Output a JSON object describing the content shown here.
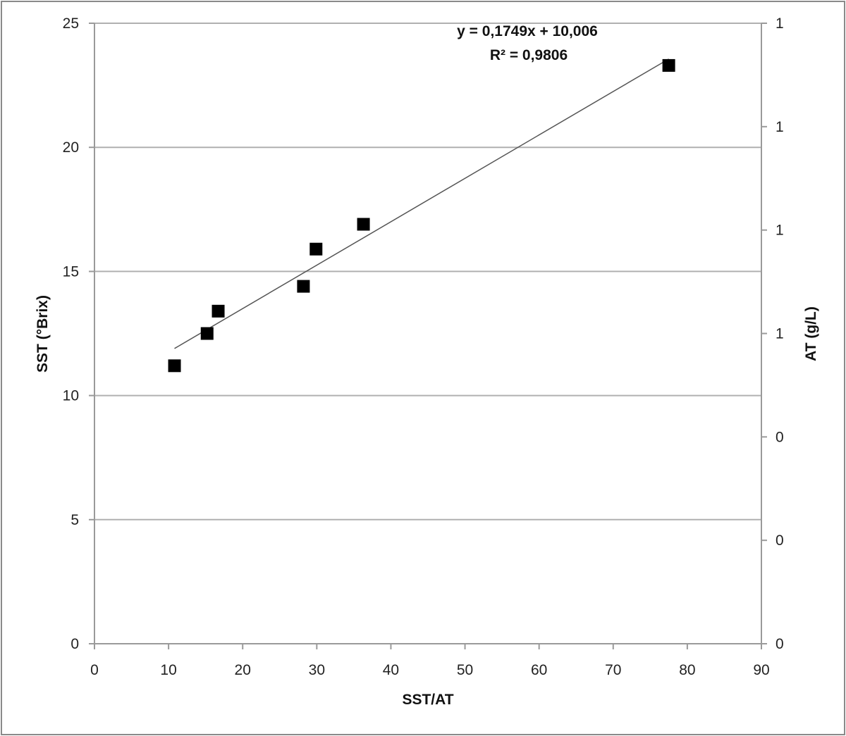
{
  "chart_data": {
    "type": "scatter",
    "title": "",
    "xlabel": "SST/AT",
    "ylabel": "SST (°Brix)",
    "y2label": "AT (g/L)",
    "xlim": [
      0,
      90
    ],
    "ylim": [
      0,
      25
    ],
    "x_ticks": [
      0,
      10,
      20,
      30,
      40,
      50,
      60,
      70,
      80,
      90
    ],
    "y_ticks": [
      0,
      5,
      10,
      15,
      20,
      25
    ],
    "y2_tick_labels": [
      "0",
      "0",
      "0",
      "1",
      "1",
      "1",
      "1"
    ],
    "grid": "horizontal",
    "legend": "none",
    "series": [
      {
        "marker": "square",
        "color": "#000000",
        "points": [
          {
            "x": 10.8,
            "y": 11.2
          },
          {
            "x": 15.2,
            "y": 12.5
          },
          {
            "x": 16.7,
            "y": 13.4
          },
          {
            "x": 28.2,
            "y": 14.4
          },
          {
            "x": 29.9,
            "y": 15.9
          },
          {
            "x": 36.3,
            "y": 16.9
          },
          {
            "x": 77.5,
            "y": 23.3
          }
        ]
      }
    ],
    "trendline": {
      "type": "linear",
      "slope": 0.1749,
      "intercept": 10.006,
      "x_range": [
        10.8,
        77.5
      ],
      "color": "#555555"
    },
    "annotations": {
      "equation": "y = 0,1749x + 10,006",
      "r_squared": "R² = 0,9806"
    }
  }
}
